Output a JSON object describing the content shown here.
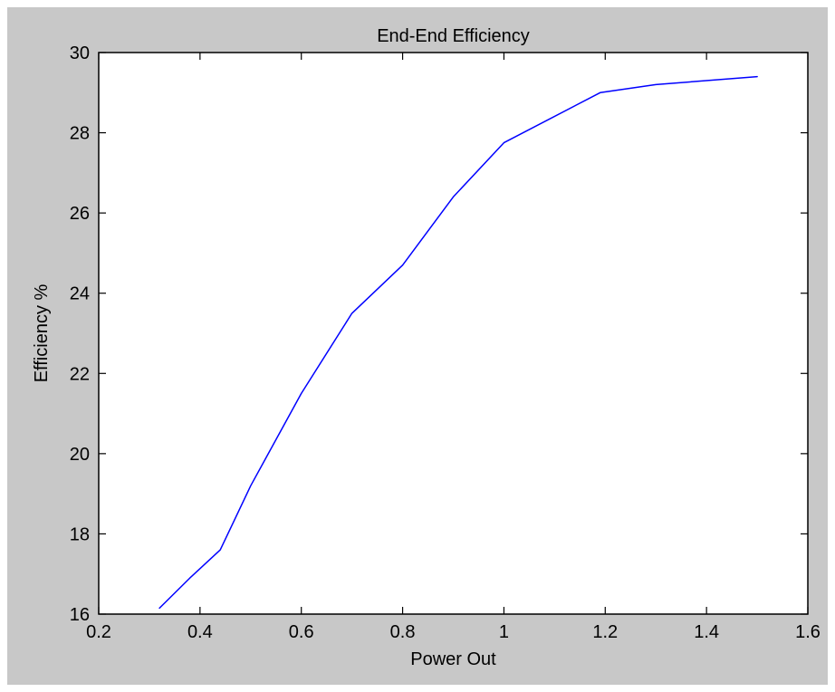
{
  "colors": {
    "figure_background": "#c8c8c8",
    "axes_background": "#ffffff",
    "axis_line": "#000000",
    "series_line": "#0000ff"
  },
  "chart_data": {
    "type": "line",
    "title": "End-End Efficiency",
    "xlabel": "Power Out",
    "ylabel": "Efficiency %",
    "xlim": [
      0.2,
      1.6
    ],
    "ylim": [
      16,
      30
    ],
    "xticks": [
      "0.2",
      "0.4",
      "0.6",
      "0.8",
      "1",
      "1.2",
      "1.4",
      "1.6"
    ],
    "xtick_values": [
      0.2,
      0.4,
      0.6,
      0.8,
      1.0,
      1.2,
      1.4,
      1.6
    ],
    "yticks": [
      "16",
      "18",
      "20",
      "22",
      "24",
      "26",
      "28",
      "30"
    ],
    "ytick_values": [
      16,
      18,
      20,
      22,
      24,
      26,
      28,
      30
    ],
    "grid": false,
    "legend": "none",
    "series": [
      {
        "x": [
          0.32,
          0.38,
          0.44,
          0.5,
          0.6,
          0.7,
          0.8,
          0.9,
          1.0,
          1.19,
          1.3,
          1.5
        ],
        "y": [
          16.15,
          16.9,
          17.6,
          19.2,
          21.5,
          23.5,
          24.7,
          26.4,
          27.75,
          29.0,
          29.2,
          29.4
        ]
      }
    ]
  }
}
